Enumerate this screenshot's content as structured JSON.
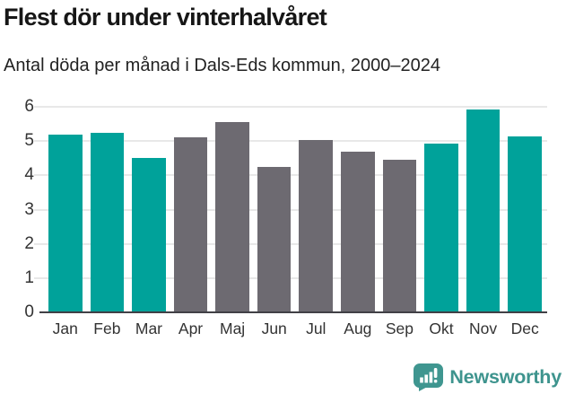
{
  "title": "Flest dör under vinterhalvåret",
  "subtitle": "Antal döda per månad i Dals-Eds kommun, 2000–2024",
  "chart_data": {
    "type": "bar",
    "title": "Flest dör under vinterhalvåret",
    "subtitle": "Antal döda per månad i Dals-Eds kommun, 2000–2024",
    "categories": [
      "Jan",
      "Feb",
      "Mar",
      "Apr",
      "Maj",
      "Jun",
      "Jul",
      "Aug",
      "Sep",
      "Okt",
      "Nov",
      "Dec"
    ],
    "values": [
      5.2,
      5.25,
      4.5,
      5.1,
      5.55,
      4.25,
      5.02,
      4.68,
      4.46,
      4.92,
      5.93,
      5.13
    ],
    "bar_roles": [
      "highlight",
      "highlight",
      "highlight",
      "default",
      "default",
      "default",
      "default",
      "default",
      "default",
      "highlight",
      "highlight",
      "highlight"
    ],
    "xlabel": "",
    "ylabel": "",
    "ylim": [
      0,
      6
    ],
    "yticks": [
      0,
      1,
      2,
      3,
      4,
      5,
      6
    ],
    "grid": true,
    "legend": "none",
    "colors": {
      "highlight": "#00A29A",
      "default": "#6D6A71",
      "gridline": "#E8E8E8",
      "axis_line": "#414046",
      "axis_text": "#333333"
    }
  },
  "footer": {
    "brand": "Newsworthy",
    "logo_color": "#3F9690",
    "text_color": "#3E948E"
  }
}
